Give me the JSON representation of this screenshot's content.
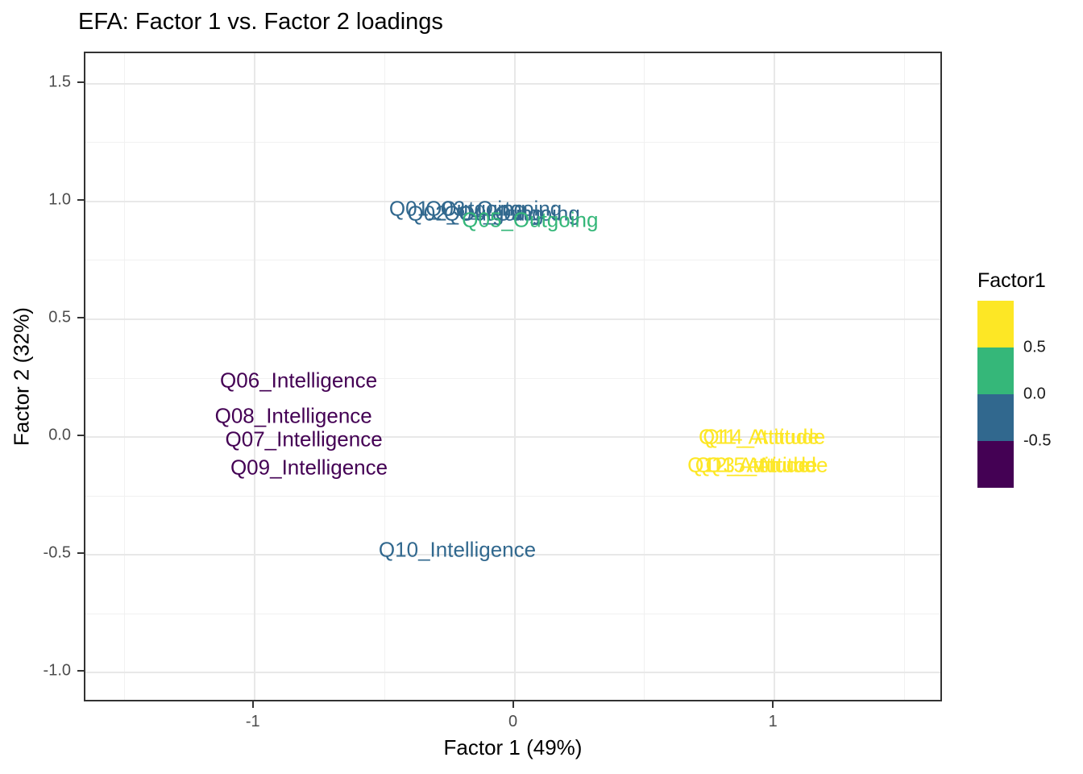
{
  "title": "EFA: Factor 1 vs. Factor 2 loadings",
  "chart_data": {
    "type": "scatter",
    "title": "EFA: Factor 1 vs. Factor 2 loadings",
    "xlabel": "Factor 1 (49%)",
    "ylabel": "Factor 2 (32%)",
    "xlim": [
      -1.65,
      1.65
    ],
    "ylim": [
      -1.13,
      1.63
    ],
    "grid": true,
    "legend_position": "right",
    "x_ticks": [
      {
        "value": -1,
        "label": "-1"
      },
      {
        "value": 0,
        "label": "0"
      },
      {
        "value": 1,
        "label": "1"
      }
    ],
    "y_ticks": [
      {
        "value": 1.5,
        "label": "1.5"
      },
      {
        "value": 1.0,
        "label": "1.0"
      },
      {
        "value": 0.5,
        "label": "0.5"
      },
      {
        "value": 0.0,
        "label": "0.0"
      },
      {
        "value": -0.5,
        "label": "-0.5"
      },
      {
        "value": -1.0,
        "label": "-1.0"
      }
    ],
    "x_minor_ticks": [
      -1.5,
      -0.5,
      0.5,
      1.5
    ],
    "y_minor_ticks": [
      1.25,
      0.75,
      0.25,
      -0.25,
      -0.75
    ],
    "points": [
      {
        "label": "Q01_Outgoing",
        "x": -0.22,
        "y": 0.97,
        "color": "#31688E"
      },
      {
        "label": "Q02_Outgoing",
        "x": -0.15,
        "y": 0.95,
        "color": "#31688E"
      },
      {
        "label": "Q03_Outgoing",
        "x": -0.08,
        "y": 0.97,
        "color": "#31688E"
      },
      {
        "label": "Q04_Outgoing",
        "x": -0.01,
        "y": 0.95,
        "color": "#31688E"
      },
      {
        "label": "Q05_Outgoing",
        "x": 0.06,
        "y": 0.92,
        "color": "#35B779"
      },
      {
        "label": "Q06_Intelligence",
        "x": -0.83,
        "y": 0.24,
        "color": "#440154"
      },
      {
        "label": "Q08_Intelligence",
        "x": -0.85,
        "y": 0.09,
        "color": "#440154"
      },
      {
        "label": "Q07_Intelligence",
        "x": -0.81,
        "y": -0.01,
        "color": "#440154"
      },
      {
        "label": "Q09_Intelligence",
        "x": -0.79,
        "y": -0.13,
        "color": "#440154"
      },
      {
        "label": "Q10_Intelligence",
        "x": -0.22,
        "y": -0.48,
        "color": "#31688E"
      },
      {
        "label": "Q11_Attitude",
        "x": 0.94,
        "y": 0.0,
        "color": "#FDE725"
      },
      {
        "label": "Q12_Attitude",
        "x": 0.9,
        "y": -0.12,
        "color": "#FDE725"
      },
      {
        "label": "Q13_Attitude",
        "x": 0.93,
        "y": -0.12,
        "color": "#FDE725"
      },
      {
        "label": "Q14_Attitude",
        "x": 0.96,
        "y": 0.0,
        "color": "#FDE725"
      },
      {
        "label": "Q15_Attitude",
        "x": 0.97,
        "y": -0.12,
        "color": "#FDE725"
      }
    ]
  },
  "legend": {
    "title": "Factor1",
    "bin_colors": [
      "#FDE725",
      "#35B779",
      "#31688E",
      "#440154"
    ],
    "boundary_labels": [
      "0.5",
      "0.0",
      "-0.5"
    ]
  },
  "colors": {
    "panel_border": "#333333",
    "grid_major": "#E8E8E8",
    "grid_minor": "#F1F1F1",
    "tick_label": "#4D4D4D",
    "background": "#FFFFFF"
  }
}
